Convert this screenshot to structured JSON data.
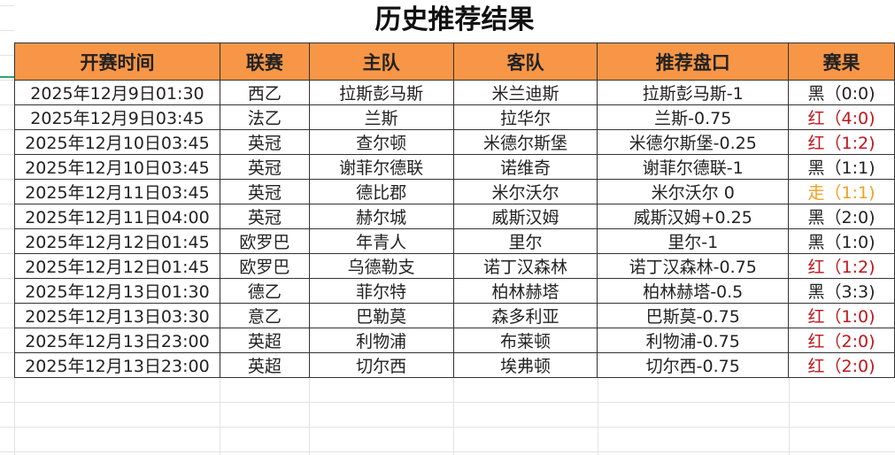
{
  "title": "历史推荐结果",
  "headers": [
    "开赛时间",
    "联赛",
    "主队",
    "客队",
    "推荐盘口",
    "赛果"
  ],
  "colors": {
    "header_bg": "#f79646",
    "win": "#c0161b",
    "push": "#f0a020",
    "loss": "#222222"
  },
  "rows": [
    {
      "time": "2025年12月9日01:30",
      "league": "西乙",
      "home": "拉斯彭马斯",
      "away": "米兰迪斯",
      "pick": "拉斯彭马斯-1",
      "result": "黑（0:0)",
      "status": "black"
    },
    {
      "time": "2025年12月9日03:45",
      "league": "法乙",
      "home": "兰斯",
      "away": "拉华尔",
      "pick": "兰斯-0.75",
      "result": "红（4:0)",
      "status": "red"
    },
    {
      "time": "2025年12月10日03:45",
      "league": "英冠",
      "home": "查尔顿",
      "away": "米德尔斯堡",
      "pick": "米德尔斯堡-0.25",
      "result": "红（1:2)",
      "status": "red"
    },
    {
      "time": "2025年12月10日03:45",
      "league": "英冠",
      "home": "谢菲尔德联",
      "away": "诺维奇",
      "pick": "谢菲尔德联-1",
      "result": "黑（1:1)",
      "status": "black"
    },
    {
      "time": "2025年12月11日03:45",
      "league": "英冠",
      "home": "德比郡",
      "away": "米尔沃尔",
      "pick": "米尔沃尔 0",
      "result": "走（1:1)",
      "status": "orange"
    },
    {
      "time": "2025年12月11日04:00",
      "league": "英冠",
      "home": "赫尔城",
      "away": "威斯汉姆",
      "pick": "威斯汉姆+0.25",
      "result": "黑（2:0)",
      "status": "black"
    },
    {
      "time": "2025年12月12日01:45",
      "league": "欧罗巴",
      "home": "年青人",
      "away": "里尔",
      "pick": "里尔-1",
      "result": "黑（1:0)",
      "status": "black"
    },
    {
      "time": "2025年12月12日01:45",
      "league": "欧罗巴",
      "home": "乌德勒支",
      "away": "诺丁汉森林",
      "pick": "诺丁汉森林-0.75",
      "result": "红（1:2)",
      "status": "red"
    },
    {
      "time": "2025年12月13日01:30",
      "league": "德乙",
      "home": "菲尔特",
      "away": "柏林赫塔",
      "pick": "柏林赫塔-0.5",
      "result": "黑（3:3)",
      "status": "black"
    },
    {
      "time": "2025年12月13日03:30",
      "league": "意乙",
      "home": "巴勒莫",
      "away": "森多利亚",
      "pick": "巴斯莫-0.75",
      "result": "红（1:0)",
      "status": "red"
    },
    {
      "time": "2025年12月13日23:00",
      "league": "英超",
      "home": "利物浦",
      "away": "布莱顿",
      "pick": "利物浦-0.75",
      "result": "红（2:0)",
      "status": "red"
    },
    {
      "time": "2025年12月13日23:00",
      "league": "英超",
      "home": "切尔西",
      "away": "埃弗顿",
      "pick": "切尔西-0.75",
      "result": "红（2:0)",
      "status": "red"
    }
  ]
}
